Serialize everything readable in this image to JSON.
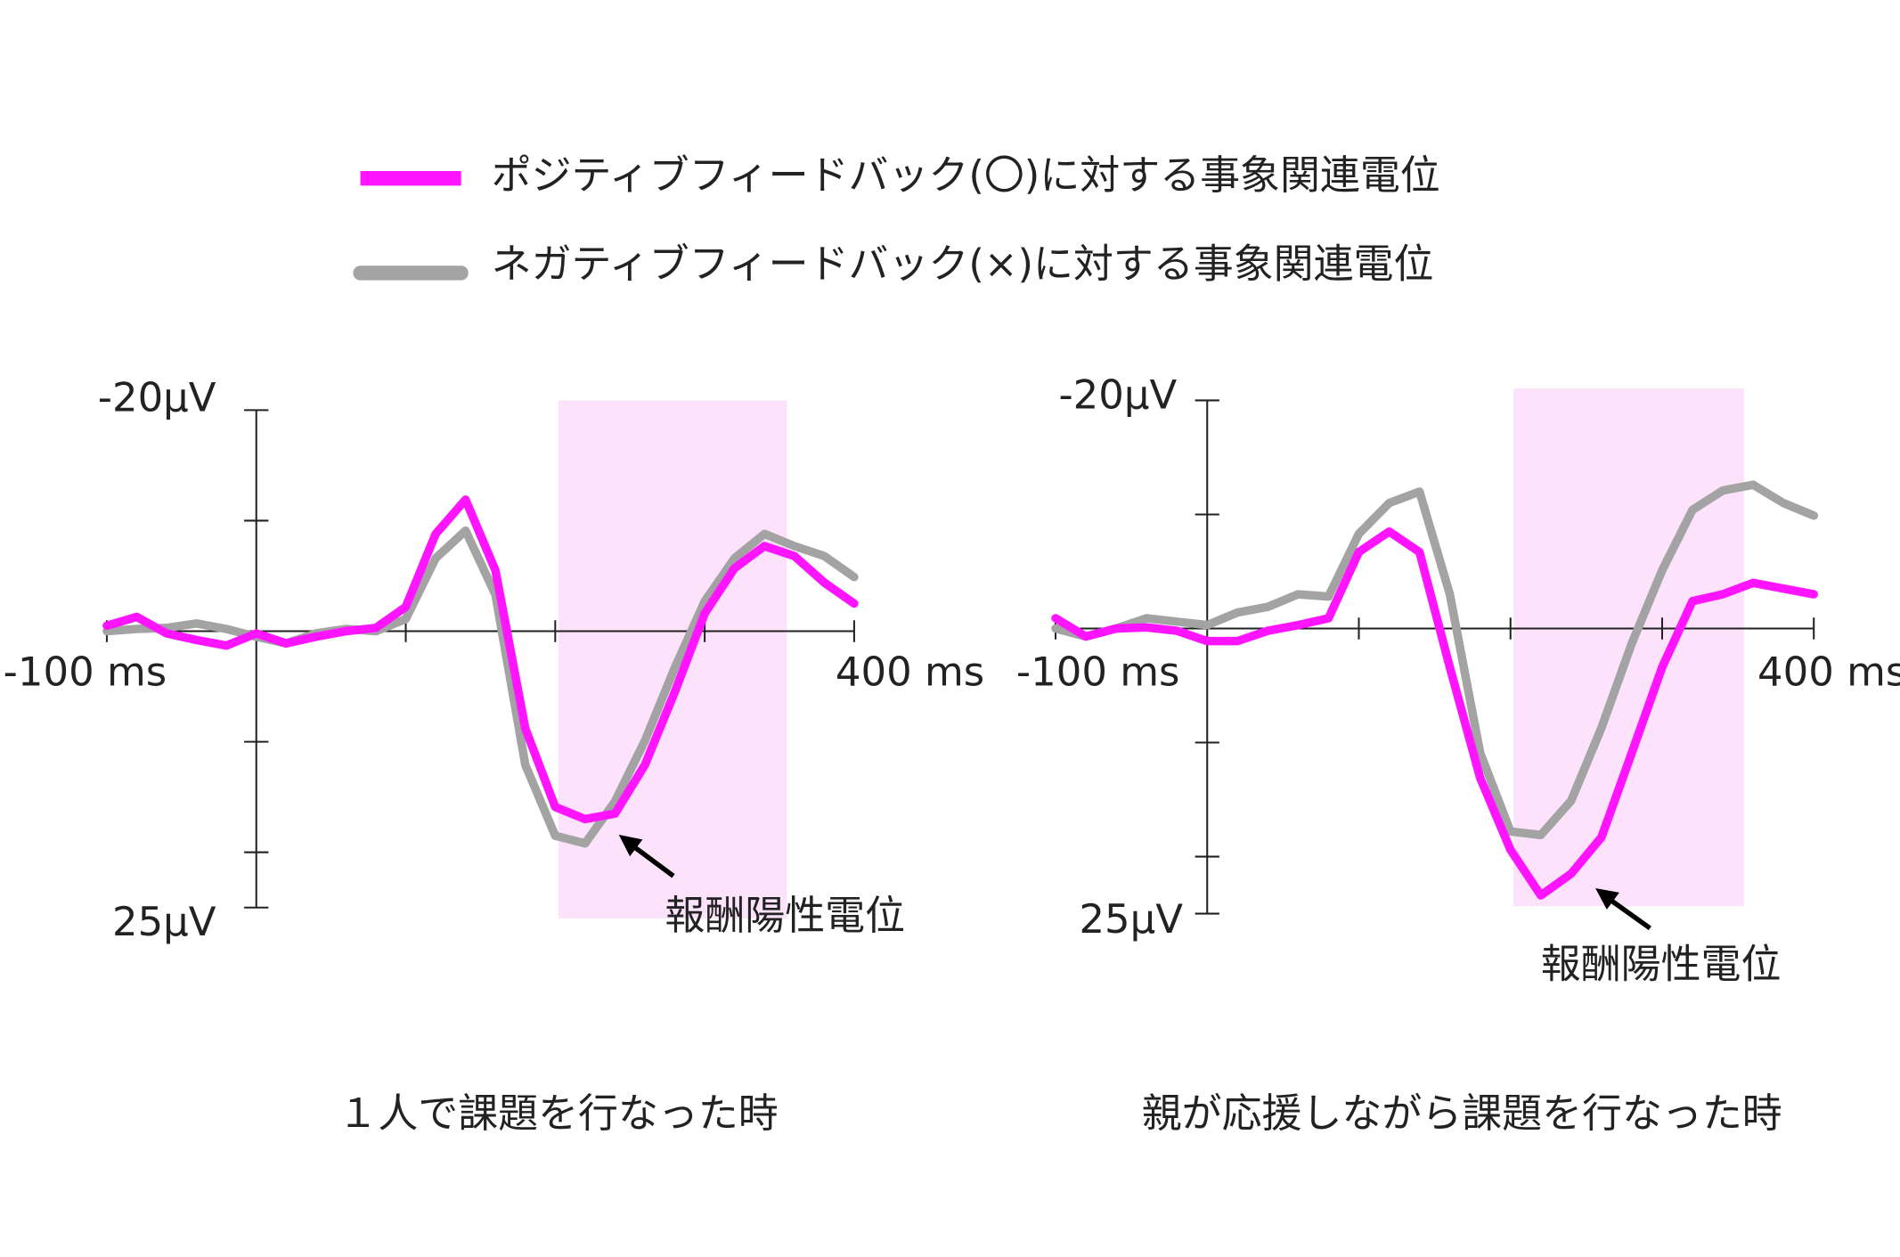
{
  "chart_data": [
    {
      "type": "line",
      "subtitle": "１人で課題を行なった時",
      "x": [
        -100,
        -80,
        -60,
        -40,
        -20,
        0,
        20,
        40,
        60,
        80,
        100,
        120,
        140,
        160,
        180,
        200,
        220,
        240,
        260,
        280,
        300,
        320,
        340,
        360,
        380,
        400
      ],
      "series": [
        {
          "name": "ポジティブフィードバック(〇)に対する事象関連電位",
          "color": "#ff14ff",
          "values": [
            -0.5,
            -1.3,
            0.2,
            0.8,
            1.3,
            0.2,
            1.1,
            0.5,
            0,
            -0.3,
            -2.2,
            -8.8,
            -11.9,
            -5.5,
            8.8,
            15.9,
            17.0,
            16.5,
            12.1,
            5.5,
            -1.6,
            -5.7,
            -7.7,
            -6.8,
            -4.4,
            -2.5
          ]
        },
        {
          "name": "ネガティブフィードバック(×)に対する事象関連電位",
          "color": "#a3a3a3",
          "values": [
            0,
            -0.2,
            -0.3,
            -0.7,
            -0.2,
            0.5,
            1.1,
            0.2,
            -0.2,
            0,
            -1.1,
            -6.6,
            -9.1,
            -3.3,
            12.1,
            18.5,
            19.2,
            15.4,
            9.9,
            3.3,
            -2.7,
            -6.6,
            -8.8,
            -7.7,
            -6.8,
            -4.9
          ]
        }
      ],
      "xlim": [
        -100,
        400
      ],
      "ylim": [
        -20,
        25
      ],
      "y_inverted": true,
      "xticks": [
        {
          "value": -100,
          "label": "-100 ms"
        },
        {
          "value": 400,
          "label": "400 ms"
        }
      ],
      "xticks_minor": [
        100,
        200,
        300
      ],
      "yticks": [
        {
          "value": -20,
          "label": "-20µV"
        },
        {
          "value": 25,
          "label": "25µV"
        }
      ],
      "yticks_minor": [
        -10,
        10,
        20
      ],
      "highlight": [
        202,
        355
      ],
      "highlight_color": "#fce3fb",
      "annotation": "報酬陽性電位"
    },
    {
      "type": "line",
      "subtitle": "親が応援しながら課題を行なった時",
      "x": [
        -100,
        -80,
        -60,
        -40,
        -20,
        0,
        20,
        40,
        60,
        80,
        100,
        120,
        140,
        160,
        180,
        200,
        220,
        240,
        260,
        280,
        300,
        320,
        340,
        360,
        380,
        400
      ],
      "series": [
        {
          "color": "#ff14ff",
          "values": [
            -0.9,
            0.7,
            0,
            -0.1,
            0.2,
            1.1,
            1.1,
            0.2,
            -0.3,
            -0.9,
            -6.7,
            -8.5,
            -6.7,
            3.4,
            13.1,
            19.4,
            23.4,
            21.5,
            18.3,
            10.9,
            3.4,
            -2.4,
            -3.0,
            -4.0,
            -3.5,
            -3.0
          ]
        },
        {
          "color": "#a3a3a3",
          "values": [
            0,
            0.7,
            0,
            -0.9,
            -0.6,
            -0.3,
            -1.4,
            -1.9,
            -3.0,
            -2.8,
            -8.3,
            -11.0,
            -12.0,
            -3.0,
            10.9,
            17.8,
            18.1,
            15.1,
            8.7,
            1.3,
            -5.1,
            -10.4,
            -12.1,
            -12.6,
            -11.0,
            -9.9
          ]
        }
      ],
      "xlim": [
        -100,
        400
      ],
      "ylim": [
        -20,
        25
      ],
      "y_inverted": true,
      "xticks": [
        {
          "value": -100,
          "label": "-100 ms"
        },
        {
          "value": 400,
          "label": "400 ms"
        }
      ],
      "xticks_minor": [
        100,
        200,
        300
      ],
      "yticks": [
        {
          "value": -20,
          "label": "-20µV"
        },
        {
          "value": 25,
          "label": "25µV"
        }
      ],
      "yticks_minor": [
        -10,
        10,
        20
      ],
      "highlight": [
        202,
        354
      ],
      "highlight_color": "#fce3fb",
      "annotation": "報酬陽性電位"
    }
  ]
}
